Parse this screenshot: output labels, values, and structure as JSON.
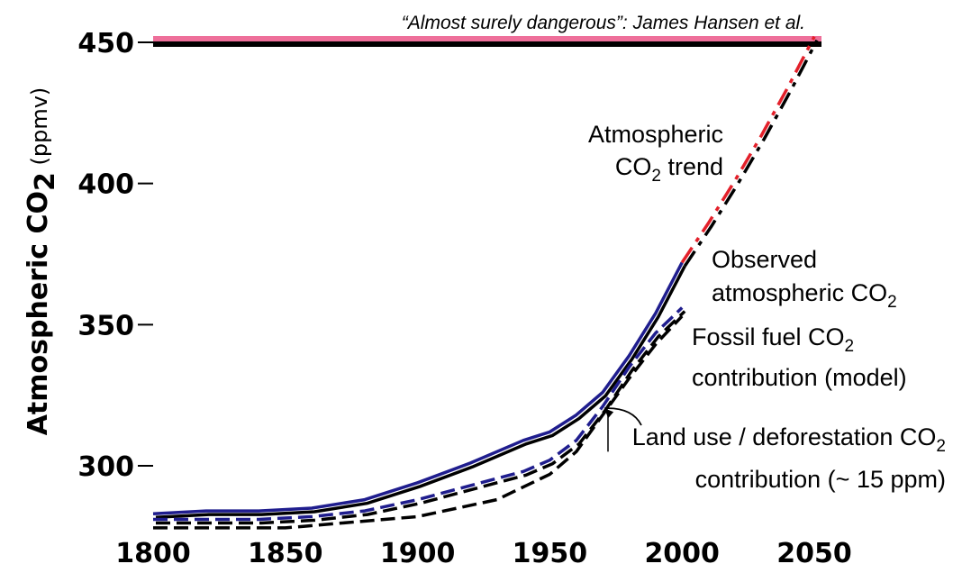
{
  "chart_data": {
    "type": "line",
    "title": "",
    "xlabel": "",
    "ylabel": "Atmospheric CO",
    "ylabel_sub": "2",
    "ylabel_unit": " (ppmv)",
    "xlim": [
      1800,
      2050
    ],
    "ylim": [
      278,
      452
    ],
    "x_ticks": [
      1800,
      1850,
      1900,
      1950,
      2000,
      2050
    ],
    "y_ticks": [
      300,
      350,
      400,
      450
    ],
    "grid": false,
    "threshold": {
      "value": 450,
      "label": "“Almost surely dangerous”: James Hansen et al.",
      "color": "#ee6f9a"
    },
    "series": [
      {
        "name": "observed",
        "style": "solid",
        "color": "#1f1d8e",
        "x": [
          1800,
          1820,
          1840,
          1860,
          1880,
          1900,
          1920,
          1940,
          1950,
          1960,
          1970,
          1980,
          1990,
          2000
        ],
        "y": [
          283,
          284,
          284,
          285,
          288,
          294,
          301,
          309,
          312,
          318,
          326,
          339,
          354,
          372
        ]
      },
      {
        "name": "fossil",
        "style": "dashed",
        "color": "#1f1d8e",
        "x": [
          1800,
          1820,
          1840,
          1860,
          1880,
          1900,
          1920,
          1940,
          1950,
          1960,
          1970,
          1980,
          1990,
          2000
        ],
        "y": [
          281,
          281,
          281,
          282,
          284,
          288,
          293,
          298,
          302,
          309,
          321,
          335,
          347,
          356
        ]
      },
      {
        "name": "landuse",
        "style": "dashed",
        "color": "#000000",
        "x": [
          1800,
          1850,
          1900,
          1930,
          1950,
          1960,
          1970,
          1980,
          1990,
          2000
        ],
        "y": [
          278,
          278,
          282,
          288,
          297,
          305,
          318,
          331,
          343,
          353
        ]
      },
      {
        "name": "trend",
        "style": "dashdot",
        "color": "#e3202a",
        "x": [
          2000,
          2010,
          2020,
          2030,
          2040,
          2050
        ],
        "y": [
          372,
          386,
          401,
          417,
          434,
          452
        ]
      }
    ],
    "annotations": [
      {
        "id": "trend",
        "lines": [
          "Atmospheric",
          "CO|2| trend"
        ]
      },
      {
        "id": "observed",
        "lines": [
          "Observed",
          "atmospheric CO|2|"
        ]
      },
      {
        "id": "fossil",
        "lines": [
          "Fossil fuel CO|2|",
          "contribution (model)"
        ]
      },
      {
        "id": "landuse",
        "lines": [
          "Land use / deforestation CO|2|",
          "contribution  (~ 15 ppm)"
        ]
      }
    ]
  }
}
